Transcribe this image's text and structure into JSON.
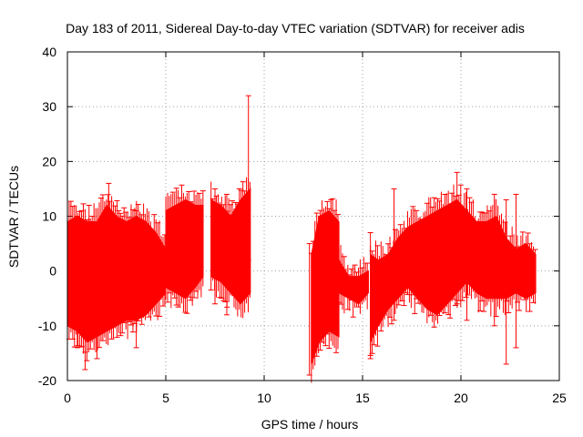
{
  "chart_data": {
    "type": "scatter",
    "title": "Day 183 of 2011, Sidereal Day-to-day VTEC variation (SDTVAR) for receiver adis",
    "xlabel": "GPS time / hours",
    "ylabel": "SDTVAR / TECUs",
    "xlim": [
      0,
      25
    ],
    "ylim": [
      -20,
      40
    ],
    "x_ticks": [
      0,
      5,
      10,
      15,
      20,
      25
    ],
    "y_ticks": [
      -20,
      -10,
      0,
      10,
      20,
      30,
      40
    ],
    "grid": true,
    "series_color": "#ff0000",
    "series": [
      {
        "name": "SDTVAR",
        "segments": [
          {
            "x": [
              0.0,
              0.5,
              1.0,
              1.5,
              2.0,
              2.5,
              3.0,
              3.5,
              4.0,
              4.5,
              5.0
            ],
            "low": [
              -10,
              -11,
              -13,
              -12,
              -11,
              -10,
              -9,
              -9,
              -8,
              -6,
              -4
            ],
            "high": [
              9,
              10,
              9,
              9,
              12,
              10,
              9,
              10,
              9,
              7,
              4
            ]
          },
          {
            "x": [
              5.0,
              5.5,
              6.0,
              6.5,
              6.9
            ],
            "low": [
              -3,
              -4,
              -5,
              -3,
              -1
            ],
            "high": [
              11,
              12,
              13,
              12,
              12
            ]
          },
          {
            "x": [
              7.3,
              7.8,
              8.3,
              8.8,
              9.3
            ],
            "low": [
              -1,
              -2,
              -4,
              -6,
              -4
            ],
            "high": [
              13,
              12,
              10,
              13,
              15
            ]
          },
          {
            "x": [
              12.4,
              12.8,
              13.3,
              13.8
            ],
            "low": [
              -17,
              -13,
              -11,
              -12
            ],
            "high": [
              3,
              10,
              11,
              9
            ]
          },
          {
            "x": [
              13.8,
              14.3,
              14.8,
              15.3
            ],
            "low": [
              -4,
              -5,
              -6,
              -4
            ],
            "high": [
              2,
              -1,
              -1,
              0
            ]
          },
          {
            "x": [
              15.4,
              15.8,
              16.3,
              16.8,
              17.3,
              17.8,
              18.3,
              18.8,
              19.3,
              19.8,
              20.3,
              20.8,
              21.3,
              21.8,
              22.3,
              22.8,
              23.3,
              23.8
            ],
            "low": [
              -13,
              -10,
              -7,
              -5,
              -3,
              -5,
              -7,
              -8,
              -6,
              -4,
              -2,
              -4,
              -5,
              -5,
              -5,
              -4,
              -5,
              -4
            ],
            "high": [
              3,
              2,
              3,
              6,
              8,
              9,
              10,
              11,
              12,
              13,
              11,
              9,
              9,
              10,
              6,
              4,
              5,
              3
            ]
          }
        ],
        "spikes": [
          {
            "x": 1.1,
            "low": -12,
            "high": 12
          },
          {
            "x": 2.1,
            "low": -10,
            "high": 16
          },
          {
            "x": 0.5,
            "low": -14,
            "high": 10
          },
          {
            "x": 0.9,
            "low": -18,
            "high": 8
          },
          {
            "x": 1.5,
            "low": -16,
            "high": 9
          },
          {
            "x": 3.5,
            "low": -14,
            "high": 11
          },
          {
            "x": 7.5,
            "low": -6,
            "high": 15
          },
          {
            "x": 9.2,
            "low": 2,
            "high": 32
          },
          {
            "x": 8.1,
            "low": -8,
            "high": 14
          },
          {
            "x": 12.3,
            "low": -19,
            "high": 5
          },
          {
            "x": 15.4,
            "low": -16,
            "high": 7
          },
          {
            "x": 16.6,
            "low": -9,
            "high": 15
          },
          {
            "x": 19.8,
            "low": -6,
            "high": 18
          },
          {
            "x": 20.3,
            "low": -9,
            "high": 15
          },
          {
            "x": 22.3,
            "low": -17,
            "high": 13
          },
          {
            "x": 22.8,
            "low": -14,
            "high": 14
          },
          {
            "x": 21.7,
            "low": -10,
            "high": 14
          }
        ]
      }
    ]
  }
}
